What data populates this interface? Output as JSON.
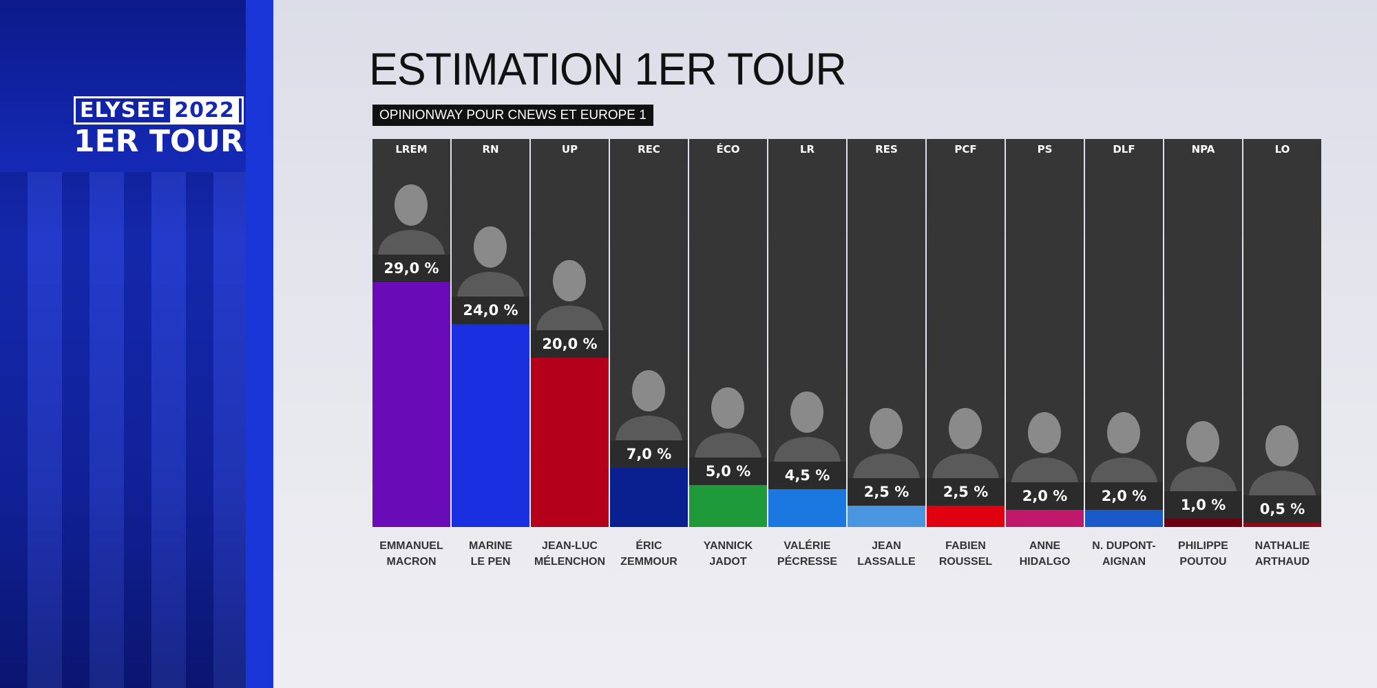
{
  "sidebar": {
    "logo_word": "ELYSEE",
    "logo_year": "2022",
    "logo_round": "1ER TOUR"
  },
  "header": {
    "title": "ESTIMATION 1ER TOUR",
    "subtitle": "OPINIONWAY POUR CNEWS ET EUROPE 1"
  },
  "chart_data": {
    "type": "bar",
    "title": "ESTIMATION 1ER TOUR",
    "subtitle": "OPINIONWAY POUR CNEWS ET EUROPE 1",
    "ylim": [
      0,
      29
    ],
    "categories": [
      "LREM",
      "RN",
      "UP",
      "REC",
      "ÉCO",
      "LR",
      "RES",
      "PCF",
      "PS",
      "DLF",
      "NPA",
      "LO"
    ],
    "names": [
      [
        "EMMANUEL",
        "MACRON"
      ],
      [
        "MARINE",
        "LE PEN"
      ],
      [
        "JEAN-LUC",
        "MÉLENCHON"
      ],
      [
        "ÉRIC",
        "ZEMMOUR"
      ],
      [
        "YANNICK",
        "JADOT"
      ],
      [
        "VALÉRIE",
        "PÉCRESSE"
      ],
      [
        "JEAN",
        "LASSALLE"
      ],
      [
        "FABIEN",
        "ROUSSEL"
      ],
      [
        "ANNE",
        "HIDALGO"
      ],
      [
        "N. DUPONT-",
        "AIGNAN"
      ],
      [
        "PHILIPPE",
        "POUTOU"
      ],
      [
        "NATHALIE",
        "ARTHAUD"
      ]
    ],
    "values": [
      29.0,
      24.0,
      20.0,
      7.0,
      5.0,
      4.5,
      2.5,
      2.5,
      2.0,
      2.0,
      1.0,
      0.5
    ],
    "labels": [
      "29,0 %",
      "24,0 %",
      "20,0 %",
      "7,0 %",
      "5,0 %",
      "4,5 %",
      "2,5 %",
      "2,5 %",
      "2,0 %",
      "2,0 %",
      "1,0 %",
      "0,5 %"
    ],
    "colors": [
      "#6a0bb8",
      "#1a2fe0",
      "#b5001a",
      "#0a2090",
      "#1f9a3a",
      "#1a78e0",
      "#4a95e0",
      "#e00010",
      "#c0186b",
      "#1a5ac8",
      "#6a0010",
      "#8a0a1a"
    ]
  }
}
